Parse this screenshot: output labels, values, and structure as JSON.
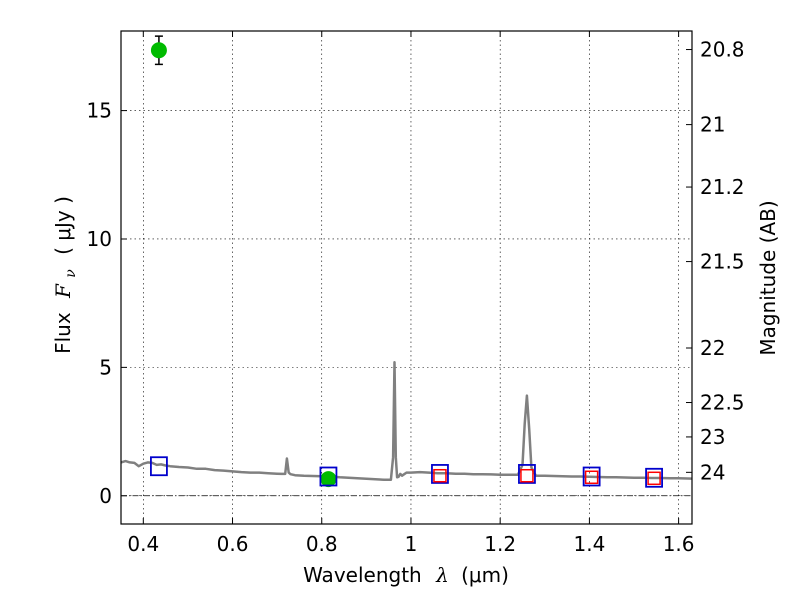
{
  "chart_data": {
    "type": "scatter",
    "xlabel": {
      "prefix": "Wavelength",
      "symbol": "λ",
      "unit": "(μm)"
    },
    "ylabel": {
      "prefix": "Flux",
      "symbol": "F",
      "subscript": "ν",
      "unit": "( μJy )"
    },
    "ylabel_right": "Magnitude (AB)",
    "xlim": [
      0.35,
      1.63
    ],
    "ylim": [
      -1.1,
      18.1
    ],
    "grid": true,
    "x_ticks": [
      {
        "value": 0.4,
        "label": "0.4"
      },
      {
        "value": 0.6,
        "label": "0.6"
      },
      {
        "value": 0.8,
        "label": "0.8"
      },
      {
        "value": 1.0,
        "label": "1"
      },
      {
        "value": 1.2,
        "label": "1.2"
      },
      {
        "value": 1.4,
        "label": "1.4"
      },
      {
        "value": 1.6,
        "label": "1.6"
      }
    ],
    "y_ticks": [
      {
        "value": 0,
        "label": "0"
      },
      {
        "value": 5,
        "label": "5"
      },
      {
        "value": 10,
        "label": "10"
      },
      {
        "value": 15,
        "label": "15"
      }
    ],
    "mag_ticks": [
      {
        "value": 20.8,
        "label": "20.8"
      },
      {
        "value": 21.0,
        "label": "21"
      },
      {
        "value": 21.2,
        "label": "21.2"
      },
      {
        "value": 21.5,
        "label": "21.5"
      },
      {
        "value": 22.0,
        "label": "22"
      },
      {
        "value": 22.5,
        "label": "22.5"
      },
      {
        "value": 23.0,
        "label": "23"
      },
      {
        "value": 24.0,
        "label": "24"
      }
    ],
    "zero_line": 0,
    "series": [
      {
        "kind": "spectrum",
        "color": "#808080",
        "x": [
          0.35,
          0.36,
          0.37,
          0.38,
          0.39,
          0.4,
          0.41,
          0.42,
          0.43,
          0.44,
          0.45,
          0.46,
          0.48,
          0.5,
          0.52,
          0.54,
          0.56,
          0.58,
          0.6,
          0.62,
          0.64,
          0.66,
          0.68,
          0.7,
          0.71,
          0.718,
          0.722,
          0.726,
          0.73,
          0.74,
          0.76,
          0.78,
          0.8,
          0.82,
          0.84,
          0.86,
          0.88,
          0.9,
          0.92,
          0.94,
          0.955,
          0.96,
          0.963,
          0.966,
          0.969,
          0.972,
          0.976,
          0.98,
          0.99,
          1.0,
          1.02,
          1.04,
          1.06,
          1.08,
          1.1,
          1.12,
          1.14,
          1.16,
          1.18,
          1.2,
          1.22,
          1.24,
          1.25,
          1.255,
          1.26,
          1.265,
          1.27,
          1.28,
          1.3,
          1.32,
          1.34,
          1.36,
          1.38,
          1.4,
          1.42,
          1.44,
          1.46,
          1.48,
          1.5,
          1.52,
          1.54,
          1.56,
          1.58,
          1.6,
          1.63
        ],
        "y": [
          1.3,
          1.35,
          1.3,
          1.28,
          1.15,
          1.25,
          1.3,
          1.28,
          1.2,
          1.22,
          1.18,
          1.15,
          1.12,
          1.1,
          1.05,
          1.05,
          1.0,
          0.98,
          0.95,
          0.92,
          0.9,
          0.9,
          0.88,
          0.86,
          0.85,
          0.85,
          1.45,
          0.9,
          0.84,
          0.8,
          0.78,
          0.77,
          0.76,
          0.75,
          0.72,
          0.7,
          0.68,
          0.66,
          0.64,
          0.62,
          0.62,
          1.5,
          5.2,
          1.5,
          0.72,
          0.74,
          0.85,
          0.78,
          0.9,
          0.9,
          0.92,
          0.9,
          0.88,
          0.88,
          0.86,
          0.86,
          0.84,
          0.84,
          0.83,
          0.82,
          0.82,
          0.82,
          1.2,
          2.8,
          3.9,
          2.6,
          1.1,
          0.78,
          0.78,
          0.77,
          0.76,
          0.75,
          0.75,
          0.74,
          0.73,
          0.72,
          0.72,
          0.71,
          0.7,
          0.7,
          0.69,
          0.69,
          0.68,
          0.68,
          0.67
        ]
      },
      {
        "kind": "observed",
        "marker": "circle",
        "color": "#00bb00",
        "points": [
          {
            "x": 0.435,
            "y": 17.35,
            "err": 0.55
          },
          {
            "x": 0.815,
            "y": 0.65,
            "err": 0.15
          }
        ]
      },
      {
        "kind": "model",
        "marker": "square",
        "color": "#0000cc",
        "points": [
          {
            "x": 0.435,
            "y": 1.15
          },
          {
            "x": 0.815,
            "y": 0.75
          },
          {
            "x": 1.065,
            "y": 0.85
          },
          {
            "x": 1.26,
            "y": 0.85
          },
          {
            "x": 1.405,
            "y": 0.75
          },
          {
            "x": 1.545,
            "y": 0.7
          }
        ]
      },
      {
        "kind": "model-inner",
        "marker": "square",
        "color": "#ff0000",
        "points": [
          {
            "x": 1.065,
            "y": 0.78
          },
          {
            "x": 1.26,
            "y": 0.78
          },
          {
            "x": 1.405,
            "y": 0.72
          },
          {
            "x": 1.545,
            "y": 0.68
          }
        ]
      }
    ]
  }
}
